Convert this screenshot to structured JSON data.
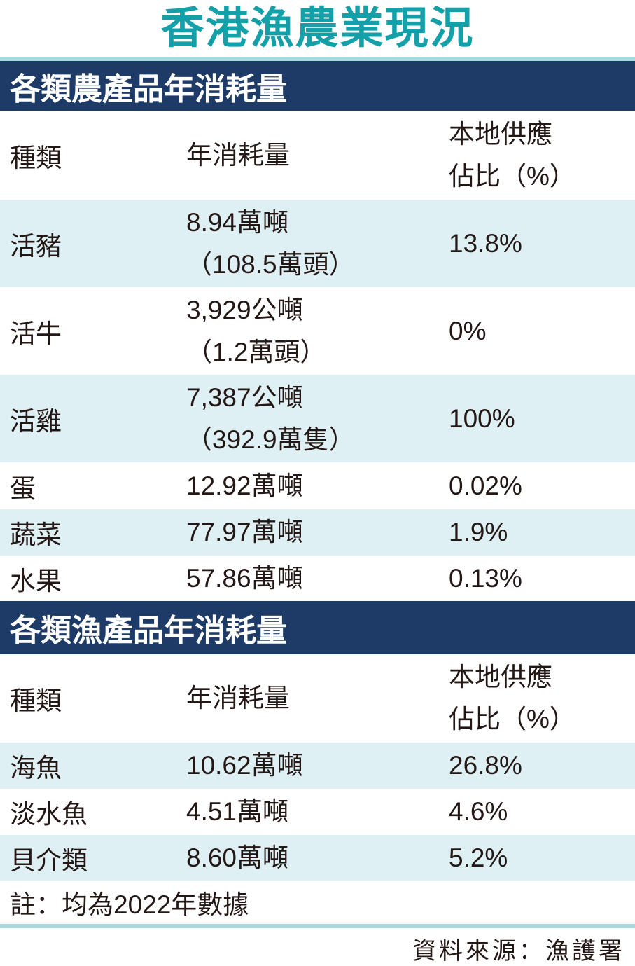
{
  "title": "香港漁農業現況",
  "agri": {
    "heading": "各類農產品年消耗量",
    "headers": {
      "type": "種類",
      "consumption": "年消耗量",
      "local_share_1": "本地供應",
      "local_share_2": "佔比（%）"
    },
    "rows": [
      {
        "type": "活豬",
        "consumption": "8.94萬噸",
        "consumption_sub": "（108.5萬頭）",
        "share": "13.8%"
      },
      {
        "type": "活牛",
        "consumption": "3,929公噸",
        "consumption_sub": "（1.2萬頭）",
        "share": "0%"
      },
      {
        "type": "活雞",
        "consumption": "7,387公噸",
        "consumption_sub": "（392.9萬隻）",
        "share": "100%"
      },
      {
        "type": "蛋",
        "consumption": "12.92萬噸",
        "share": "0.02%"
      },
      {
        "type": "蔬菜",
        "consumption": "77.97萬噸",
        "share": "1.9%"
      },
      {
        "type": "水果",
        "consumption": "57.86萬噸",
        "share": "0.13%"
      }
    ]
  },
  "fish": {
    "heading": "各類漁產品年消耗量",
    "headers": {
      "type": "種類",
      "consumption": "年消耗量",
      "local_share_1": "本地供應",
      "local_share_2": "佔比（%）"
    },
    "rows": [
      {
        "type": "海魚",
        "consumption": "10.62萬噸",
        "share": "26.8%"
      },
      {
        "type": "淡水魚",
        "consumption": "4.51萬噸",
        "share": "4.6%"
      },
      {
        "type": "貝介類",
        "consumption": "8.60萬噸",
        "share": "5.2%"
      }
    ]
  },
  "note": "註：均為2022年數據",
  "source": "資料來源：漁護署",
  "colors": {
    "title": "#14a0a9",
    "band": "#1e3a66",
    "row_alt": "#dff0f4",
    "rule": "#a8d8de"
  }
}
